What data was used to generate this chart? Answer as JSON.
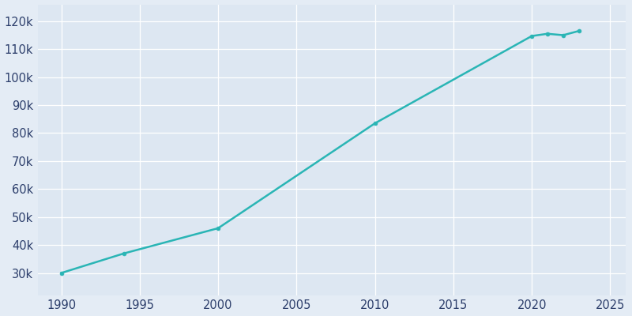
{
  "years": [
    1990,
    1994,
    2000,
    2010,
    2020,
    2021,
    2022,
    2023
  ],
  "population": [
    30000,
    37000,
    46000,
    83500,
    114700,
    115500,
    115000,
    116500
  ],
  "line_color": "#2ab5b5",
  "marker": "o",
  "marker_size": 3.5,
  "line_width": 1.8,
  "bg_color": "#e4ecf5",
  "plot_bg_color": "#dde7f2",
  "grid_color": "#ffffff",
  "tick_color": "#2c3e6b",
  "xlim": [
    1988.5,
    2026
  ],
  "ylim": [
    22000,
    126000
  ],
  "xticks": [
    1990,
    1995,
    2000,
    2005,
    2010,
    2015,
    2020,
    2025
  ],
  "yticks": [
    30000,
    40000,
    50000,
    60000,
    70000,
    80000,
    90000,
    100000,
    110000,
    120000
  ],
  "ytick_labels": [
    "30k",
    "40k",
    "50k",
    "60k",
    "70k",
    "80k",
    "90k",
    "100k",
    "110k",
    "120k"
  ],
  "figsize": [
    8.0,
    4.0
  ],
  "dpi": 100,
  "tick_fontsize": 10.5
}
